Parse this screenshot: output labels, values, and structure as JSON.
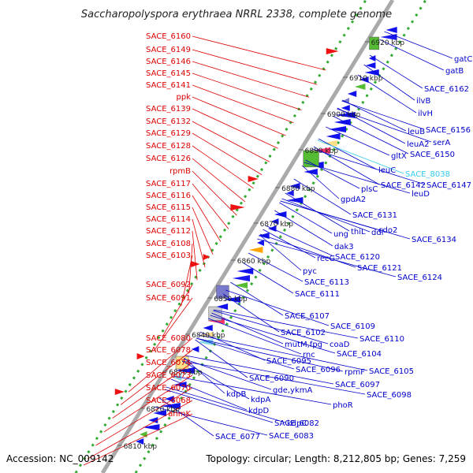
{
  "title": "Saccharopolyspora erythraea NRRL 2338, complete genome",
  "footer": {
    "accession": "Accession: NC_009142",
    "topology": "Topology: circular; Length: 8,212,805 bp; Genes: 7,259"
  },
  "scale_ticks": [
    "6810 kbp",
    "6820 kbp",
    "6830 kbp",
    "6840 kbp",
    "6850 kbp",
    "6860 kbp",
    "6870 kbp",
    "6880 kbp",
    "6890 kbp",
    "6900 kbp",
    "6910 kbp",
    "6920 kbp"
  ],
  "colors": {
    "left_label": "#dd0000",
    "right_label": "#0000cc",
    "highlight_label": "#33ccee",
    "forward_gene": "#ee1111",
    "reverse_gene": "#1111ee",
    "backbone": "#999999",
    "scale_dots": "#33aa33"
  },
  "left_labels": [
    "SACE_6160",
    "SACE_6149",
    "SACE_6146",
    "SACE_6145",
    "SACE_6141",
    "ppk",
    "SACE_6139",
    "SACE_6132",
    "SACE_6129",
    "SACE_6128",
    "SACE_6126",
    "rpmB",
    "SACE_6117",
    "SACE_6116",
    "SACE_6115",
    "SACE_6114",
    "SACE_6112",
    "SACE_6108",
    "SACE_6103",
    "SACE_6092",
    "SACE_6091",
    "SACE_6080",
    "SACE_6078",
    "SACE_6074",
    "SACE_6073",
    "SACE_6070",
    "SACE_6068",
    "anmK"
  ],
  "right_labels": [
    "gatC",
    "gatB",
    "SACE_6162",
    "ilvB",
    "ilvH",
    "SACE_6156",
    "leuB",
    "serA",
    "leuA2",
    "SACE_6150",
    "gltX",
    "leuC",
    "SACE_8038",
    "SACE_6147",
    "SACE_6142",
    "plsC",
    "leuD",
    "gpdA2",
    "SACE_6131",
    "thiL",
    "cdo2",
    "ung",
    "ddl",
    "dak3",
    "SACE_6134",
    "recG",
    "SACE_6120",
    "SACE_6121",
    "pyc",
    "SACE_6124",
    "SACE_6113",
    "SACE_6111",
    "SACE_6107",
    "SACE_6109",
    "SACE_6102",
    "SACE_6110",
    "mutM,fpg",
    "coaD",
    "rnc",
    "SACE_6104",
    "SACE_6095",
    "SACE_6096",
    "rpmF",
    "SACE_6105",
    "SACE_6090",
    "SACE_6097",
    "gde,ykmA",
    "SACE_6098",
    "kdpB",
    "kdpA",
    "phoR",
    "kdpD",
    "SACE_6082",
    "kdpC",
    "SACE_6077",
    "SACE_6083"
  ]
}
